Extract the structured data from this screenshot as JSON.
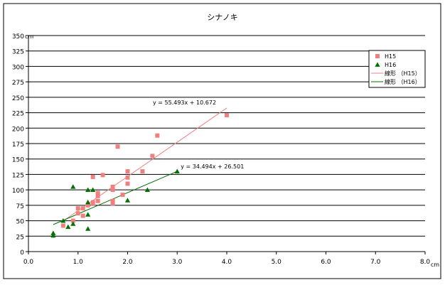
{
  "chart_data": {
    "type": "scatter",
    "title": "シナノキ",
    "x_unit": "cm",
    "y_unit": "cm",
    "xlim": [
      0,
      8
    ],
    "ylim": [
      0,
      350
    ],
    "x_ticks": [
      "0.0",
      "1.0",
      "2.0",
      "3.0",
      "4.0",
      "5.0",
      "6.0",
      "7.0",
      "8.0"
    ],
    "y_ticks": [
      "0",
      "25",
      "50",
      "75",
      "100",
      "125",
      "150",
      "175",
      "200",
      "225",
      "250",
      "275",
      "300",
      "325",
      "350"
    ],
    "grid": "horizontal",
    "legend_position": "top-right",
    "series": [
      {
        "name": "H15",
        "marker": "square",
        "color": "#f08080",
        "points": [
          [
            0.7,
            42
          ],
          [
            0.9,
            50
          ],
          [
            1.0,
            62
          ],
          [
            1.0,
            70
          ],
          [
            1.1,
            58
          ],
          [
            1.1,
            70
          ],
          [
            1.2,
            75
          ],
          [
            1.3,
            78
          ],
          [
            1.3,
            80
          ],
          [
            1.3,
            121
          ],
          [
            1.4,
            82
          ],
          [
            1.4,
            90
          ],
          [
            1.4,
            95
          ],
          [
            1.5,
            124
          ],
          [
            1.7,
            78
          ],
          [
            1.7,
            82
          ],
          [
            1.7,
            100
          ],
          [
            1.7,
            105
          ],
          [
            1.8,
            170
          ],
          [
            1.9,
            92
          ],
          [
            2.0,
            110
          ],
          [
            2.0,
            120
          ],
          [
            2.0,
            130
          ],
          [
            2.3,
            130
          ],
          [
            2.5,
            155
          ],
          [
            2.6,
            188
          ],
          [
            4.0,
            221
          ]
        ]
      },
      {
        "name": "H16",
        "marker": "triangle",
        "color": "#007000",
        "points": [
          [
            0.5,
            26
          ],
          [
            0.5,
            30
          ],
          [
            0.7,
            50
          ],
          [
            0.8,
            40
          ],
          [
            0.9,
            45
          ],
          [
            0.9,
            105
          ],
          [
            1.2,
            37
          ],
          [
            1.2,
            60
          ],
          [
            1.2,
            80
          ],
          [
            1.2,
            100
          ],
          [
            1.3,
            100
          ],
          [
            2.0,
            83
          ],
          [
            2.4,
            100
          ],
          [
            3.0,
            130
          ]
        ]
      }
    ],
    "trendlines": [
      {
        "name": "線形 （H15）",
        "series": "H15",
        "slope": 55.493,
        "intercept": 10.672,
        "x_range": [
          0.7,
          4.0
        ],
        "color": "#f08080",
        "equation": "y = 55.493x + 10.672"
      },
      {
        "name": "線形 （H16）",
        "series": "H16",
        "slope": 34.494,
        "intercept": 26.501,
        "x_range": [
          0.5,
          3.0
        ],
        "color": "#007000",
        "equation": "y = 34.494x + 26.501"
      }
    ]
  }
}
